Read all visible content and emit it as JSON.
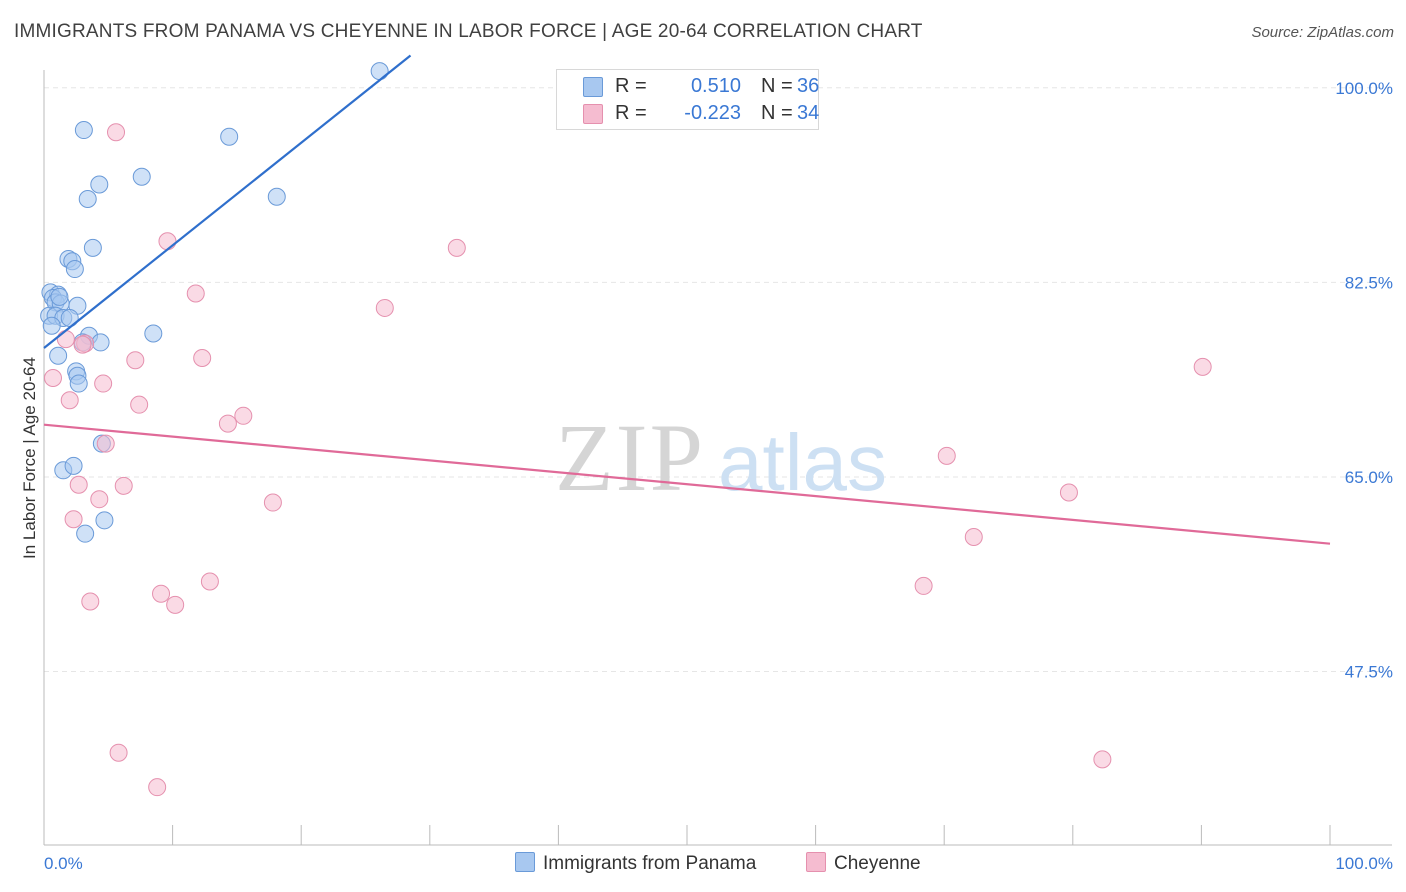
{
  "title": "IMMIGRANTS FROM PANAMA VS CHEYENNE IN LABOR FORCE | AGE 20-64 CORRELATION CHART",
  "source": "Source: ZipAtlas.com",
  "watermark": {
    "zip": "ZIP",
    "atlas": "atlas"
  },
  "colors": {
    "blue_fill": "#a8c8f0",
    "blue_stroke": "#6a9ad8",
    "blue_line": "#2f6fcc",
    "pink_fill": "#f5bcd0",
    "pink_stroke": "#e590ae",
    "pink_line": "#e06a98",
    "axis_text": "#3a78d4",
    "grid": "#e6e6e6"
  },
  "stats": [
    {
      "r_label": "R =",
      "r_value": " 0.510",
      "n_label": "N =",
      "n_value": "36",
      "color": "#a8c8f0",
      "border": "#6a9ad8"
    },
    {
      "r_label": "R =",
      "r_value": "-0.223",
      "n_label": "N =",
      "n_value": "34",
      "color": "#f5bcd0",
      "border": "#e590ae"
    }
  ],
  "legend": [
    {
      "label": "Immigrants from Panama",
      "color": "#a8c8f0",
      "border": "#6a9ad8"
    },
    {
      "label": "Cheyenne",
      "color": "#f5bcd0",
      "border": "#e590ae"
    }
  ],
  "chart_data": {
    "type": "scatter",
    "title": "IMMIGRANTS FROM PANAMA VS CHEYENNE IN LABOR FORCE | AGE 20-64 CORRELATION CHART",
    "xlabel": "",
    "ylabel": "In Labor Force | Age 20-64",
    "xlim": [
      0,
      100
    ],
    "ylim": [
      31.9,
      101.6
    ],
    "x_tick_labels": [
      "0.0%",
      "100.0%"
    ],
    "y_ticks": [
      47.5,
      65.0,
      82.5,
      100.0
    ],
    "y_tick_labels": [
      "47.5%",
      "65.0%",
      "82.5%",
      "100.0%"
    ],
    "grid": true,
    "legend_position": "bottom",
    "series": [
      {
        "name": "Immigrants from Panama",
        "points": [
          [
            26.1,
            101.5
          ],
          [
            3.1,
            96.2
          ],
          [
            14.4,
            95.6
          ],
          [
            4.3,
            91.3
          ],
          [
            7.6,
            92.0
          ],
          [
            3.4,
            90.0
          ],
          [
            18.1,
            90.2
          ],
          [
            3.8,
            85.6
          ],
          [
            1.9,
            84.6
          ],
          [
            2.2,
            84.4
          ],
          [
            2.4,
            83.7
          ],
          [
            0.5,
            81.6
          ],
          [
            1.1,
            81.4
          ],
          [
            0.7,
            81.1
          ],
          [
            0.9,
            80.7
          ],
          [
            1.3,
            80.6
          ],
          [
            0.4,
            79.5
          ],
          [
            0.9,
            79.5
          ],
          [
            1.5,
            79.3
          ],
          [
            2.6,
            80.4
          ],
          [
            0.6,
            78.6
          ],
          [
            3.5,
            77.7
          ],
          [
            8.5,
            77.9
          ],
          [
            4.4,
            77.1
          ],
          [
            3.0,
            77.1
          ],
          [
            1.1,
            75.9
          ],
          [
            2.5,
            74.5
          ],
          [
            2.6,
            74.1
          ],
          [
            2.7,
            73.4
          ],
          [
            4.5,
            68.0
          ],
          [
            1.5,
            65.6
          ],
          [
            2.3,
            66.0
          ],
          [
            3.2,
            59.9
          ],
          [
            4.7,
            61.1
          ],
          [
            1.2,
            81.2
          ],
          [
            2.0,
            79.3
          ]
        ],
        "trend": {
          "x": [
            0,
            28.5
          ],
          "y": [
            76.6,
            102.9
          ]
        }
      },
      {
        "name": "Cheyenne",
        "points": [
          [
            5.6,
            96.0
          ],
          [
            9.6,
            86.2
          ],
          [
            32.1,
            85.6
          ],
          [
            11.8,
            81.5
          ],
          [
            26.5,
            80.2
          ],
          [
            1.7,
            77.4
          ],
          [
            3.2,
            77.0
          ],
          [
            7.1,
            75.5
          ],
          [
            12.3,
            75.7
          ],
          [
            0.7,
            73.9
          ],
          [
            4.6,
            73.4
          ],
          [
            2.0,
            71.9
          ],
          [
            7.4,
            71.5
          ],
          [
            15.5,
            70.5
          ],
          [
            4.8,
            68.0
          ],
          [
            2.7,
            64.3
          ],
          [
            6.2,
            64.2
          ],
          [
            4.3,
            63.0
          ],
          [
            17.8,
            62.7
          ],
          [
            2.3,
            61.2
          ],
          [
            90.1,
            74.9
          ],
          [
            70.2,
            66.9
          ],
          [
            79.7,
            63.6
          ],
          [
            72.3,
            59.6
          ],
          [
            12.9,
            55.6
          ],
          [
            9.1,
            54.5
          ],
          [
            68.4,
            55.2
          ],
          [
            10.2,
            53.5
          ],
          [
            3.6,
            53.8
          ],
          [
            5.8,
            40.2
          ],
          [
            8.8,
            37.1
          ],
          [
            82.3,
            39.6
          ],
          [
            14.3,
            69.8
          ],
          [
            3.0,
            76.9
          ]
        ],
        "trend": {
          "x": [
            0,
            100
          ],
          "y": [
            69.7,
            59.0
          ]
        }
      }
    ]
  }
}
